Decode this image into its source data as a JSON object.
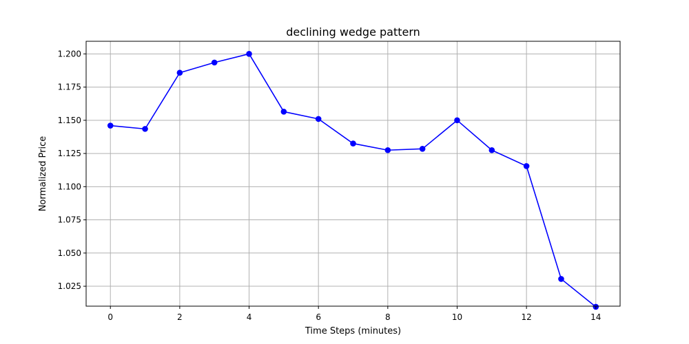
{
  "chart_data": {
    "type": "line",
    "title": "declining wedge pattern",
    "xlabel": "Time Steps (minutes)",
    "ylabel": "Normalized Price",
    "x": [
      0,
      1,
      2,
      3,
      4,
      5,
      6,
      7,
      8,
      9,
      10,
      11,
      12,
      13,
      14
    ],
    "series": [
      {
        "values": [
          1.146,
          1.1435,
          1.1858,
          1.1935,
          1.2,
          1.1565,
          1.151,
          1.1325,
          1.1275,
          1.1285,
          1.15,
          1.1275,
          1.1155,
          1.0305,
          1.0095
        ],
        "color": "#0000ff",
        "marker": "circle"
      }
    ],
    "xticks": [
      "0",
      "2",
      "4",
      "6",
      "8",
      "10",
      "12",
      "14"
    ],
    "yticks": [
      "1.025",
      "1.050",
      "1.075",
      "1.100",
      "1.125",
      "1.150",
      "1.175",
      "1.200"
    ],
    "xlim": [
      -0.7,
      14.7
    ],
    "ylim": [
      1.01,
      1.2095
    ],
    "grid": true,
    "legend": "none"
  }
}
